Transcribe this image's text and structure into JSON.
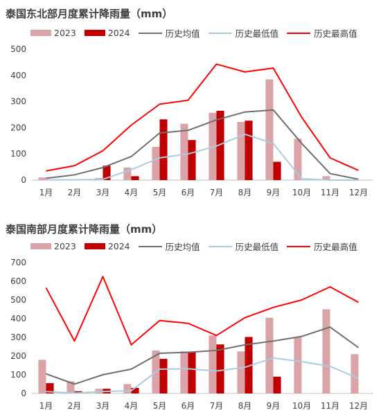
{
  "chart_data": [
    {
      "type": "bar",
      "title": "泰国东北部月度累计降雨量（mm）",
      "categories": [
        "1月",
        "2月",
        "3月",
        "4月",
        "5月",
        "6月",
        "7月",
        "8月",
        "9月",
        "10月",
        "11月",
        "12月"
      ],
      "ylim": [
        0,
        500
      ],
      "yticks": [
        0,
        100,
        200,
        300,
        400,
        500
      ],
      "legend_position": "top",
      "series": [
        {
          "name": "2023",
          "kind": "bar",
          "color": "#D9A3A7",
          "values": [
            10,
            3,
            8,
            48,
            127,
            215,
            257,
            222,
            385,
            158,
            15,
            0
          ]
        },
        {
          "name": "2024",
          "kind": "bar",
          "color": "#C00000",
          "values": [
            3,
            1,
            55,
            15,
            232,
            153,
            265,
            227,
            70,
            null,
            null,
            null
          ]
        },
        {
          "name": "历史均值",
          "kind": "line",
          "color": "#6E6E6E",
          "values": [
            7,
            20,
            48,
            90,
            180,
            190,
            230,
            260,
            268,
            140,
            25,
            3
          ]
        },
        {
          "name": "历史最低值",
          "kind": "line",
          "color": "#A9CCE0",
          "values": [
            1,
            1,
            3,
            40,
            85,
            100,
            130,
            175,
            140,
            5,
            0,
            0
          ]
        },
        {
          "name": "历史最高值",
          "kind": "line",
          "color": "#FF0000",
          "values": [
            35,
            55,
            112,
            210,
            290,
            305,
            443,
            413,
            428,
            240,
            85,
            37
          ]
        }
      ]
    },
    {
      "type": "bar",
      "title": "泰国南部月度累计降雨量（mm）",
      "categories": [
        "1月",
        "2月",
        "3月",
        "4月",
        "5月",
        "6月",
        "7月",
        "8月",
        "9月",
        "10月",
        "11月",
        "12月"
      ],
      "ylim": [
        0,
        700
      ],
      "yticks": [
        0,
        100,
        200,
        300,
        400,
        500,
        600,
        700
      ],
      "legend_position": "top",
      "series": [
        {
          "name": "2023",
          "kind": "bar",
          "color": "#D9A3A7",
          "values": [
            180,
            65,
            25,
            50,
            230,
            225,
            310,
            225,
            405,
            300,
            450,
            210
          ]
        },
        {
          "name": "2024",
          "kind": "bar",
          "color": "#C00000",
          "values": [
            55,
            12,
            25,
            30,
            185,
            220,
            262,
            302,
            90,
            null,
            null,
            null
          ]
        },
        {
          "name": "历史均值",
          "kind": "line",
          "color": "#6E6E6E",
          "values": [
            105,
            50,
            100,
            130,
            215,
            220,
            230,
            260,
            280,
            305,
            355,
            245
          ]
        },
        {
          "name": "历史最低值",
          "kind": "line",
          "color": "#A9CCE0",
          "values": [
            10,
            2,
            10,
            15,
            130,
            132,
            120,
            140,
            190,
            170,
            145,
            80
          ]
        },
        {
          "name": "历史最高值",
          "kind": "line",
          "color": "#FF0000",
          "values": [
            565,
            280,
            625,
            260,
            390,
            375,
            310,
            405,
            460,
            500,
            570,
            487
          ]
        }
      ]
    }
  ]
}
